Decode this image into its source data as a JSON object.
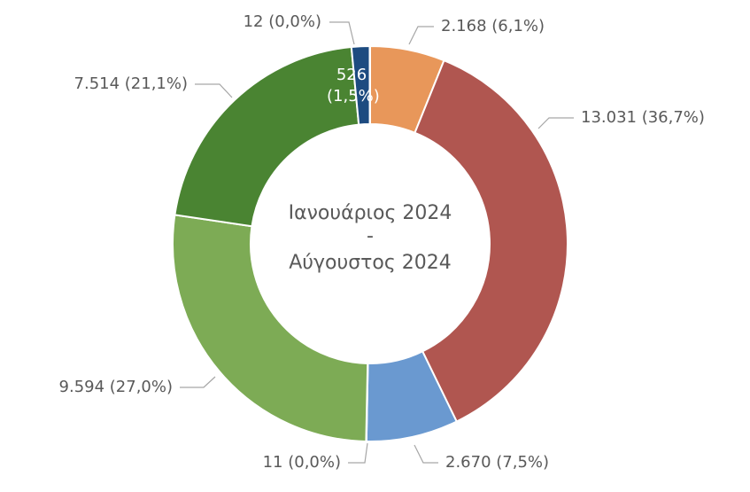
{
  "chart_data": {
    "type": "donut",
    "center_text": [
      "Ιανουάριος 2024",
      "-",
      "Αύγουστος 2024"
    ],
    "values": [
      2168,
      13031,
      2670,
      11,
      9594,
      7514,
      526,
      12
    ],
    "value_labels": [
      "2.168 (6,1%)",
      "13.031 (36,7%)",
      "2.670 (7,5%)",
      "11 (0,0%)",
      "9.594 (27,0%)",
      "7.514 (21,1%)",
      "526 (1,5%)",
      "12 (0,0%)"
    ],
    "colors": [
      "#e8975a",
      "#b05650",
      "#6a99d0",
      "#a5a5a5",
      "#7dab55",
      "#4a8432",
      "#1d4b80",
      "#5b9bd5"
    ]
  }
}
